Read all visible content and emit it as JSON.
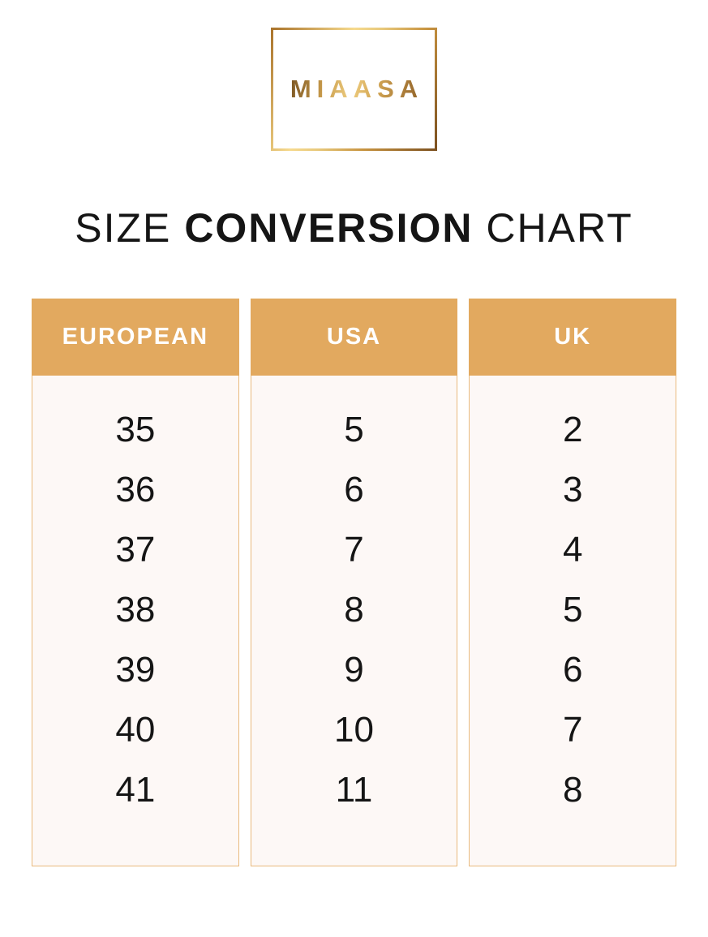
{
  "brand": {
    "name": "MIAASA"
  },
  "title": {
    "prefix": "SIZE",
    "emphasis": "CONVERSION",
    "suffix": "CHART"
  },
  "colors": {
    "header_bg": "#e2a95f",
    "header_text": "#ffffff",
    "body_bg": "#fdf8f6",
    "body_border": "#e9ba7e",
    "gold_dark": "#7a5120",
    "gold_light": "#f6da8e",
    "text": "#151515"
  },
  "chart_data": {
    "type": "table",
    "title": "SIZE CONVERSION CHART",
    "columns": [
      "EUROPEAN",
      "USA",
      "UK"
    ],
    "rows": [
      [
        35,
        5,
        2
      ],
      [
        36,
        6,
        3
      ],
      [
        37,
        7,
        4
      ],
      [
        38,
        8,
        5
      ],
      [
        39,
        9,
        6
      ],
      [
        40,
        10,
        7
      ],
      [
        41,
        11,
        8
      ]
    ]
  }
}
